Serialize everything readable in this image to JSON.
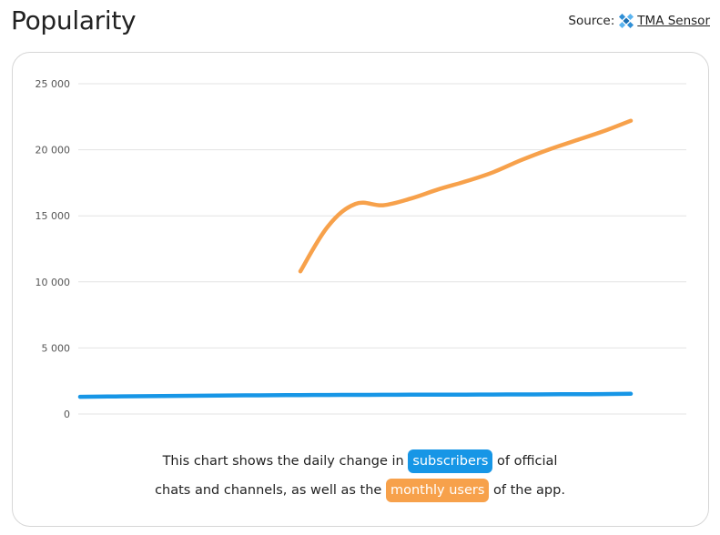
{
  "header": {
    "title": "Popularity",
    "source_label": "Source:",
    "source_link": "TMA Sensor"
  },
  "caption": {
    "part1": "This chart shows the daily change in",
    "highlight1": "subscribers",
    "part2": "of official",
    "part3": "chats and channels, as well as the",
    "highlight2": "monthly users",
    "part4": "of the app."
  },
  "colors": {
    "subscribers": "#1796e6",
    "monthly_users": "#f7a14b",
    "grid": "#e3e3e3"
  },
  "chart_data": {
    "type": "line",
    "title": "",
    "xlabel": "",
    "ylabel": "",
    "ylim": [
      0,
      25000
    ],
    "yticks": [
      0,
      5000,
      10000,
      15000,
      20000,
      25000
    ],
    "ytick_labels": [
      "0",
      "5 000",
      "10 000",
      "15 000",
      "20 000",
      "25 000"
    ],
    "grid": true,
    "x": [
      0,
      1,
      2,
      3,
      4,
      5,
      6,
      7,
      8,
      9,
      10,
      11,
      12,
      13,
      14,
      15,
      16,
      17,
      18,
      19,
      20
    ],
    "series": [
      {
        "key": "subscribers",
        "values": [
          1300,
          1320,
          1340,
          1360,
          1380,
          1400,
          1410,
          1420,
          1430,
          1440,
          1445,
          1450,
          1460,
          1465,
          1470,
          1475,
          1480,
          1490,
          1500,
          1510,
          1530
        ]
      },
      {
        "key": "monthly_users",
        "values": [
          null,
          null,
          null,
          null,
          null,
          null,
          null,
          null,
          10800,
          14200,
          15900,
          15800,
          16300,
          17000,
          17600,
          18300,
          19200,
          20000,
          20700,
          21400,
          22200
        ]
      }
    ]
  }
}
